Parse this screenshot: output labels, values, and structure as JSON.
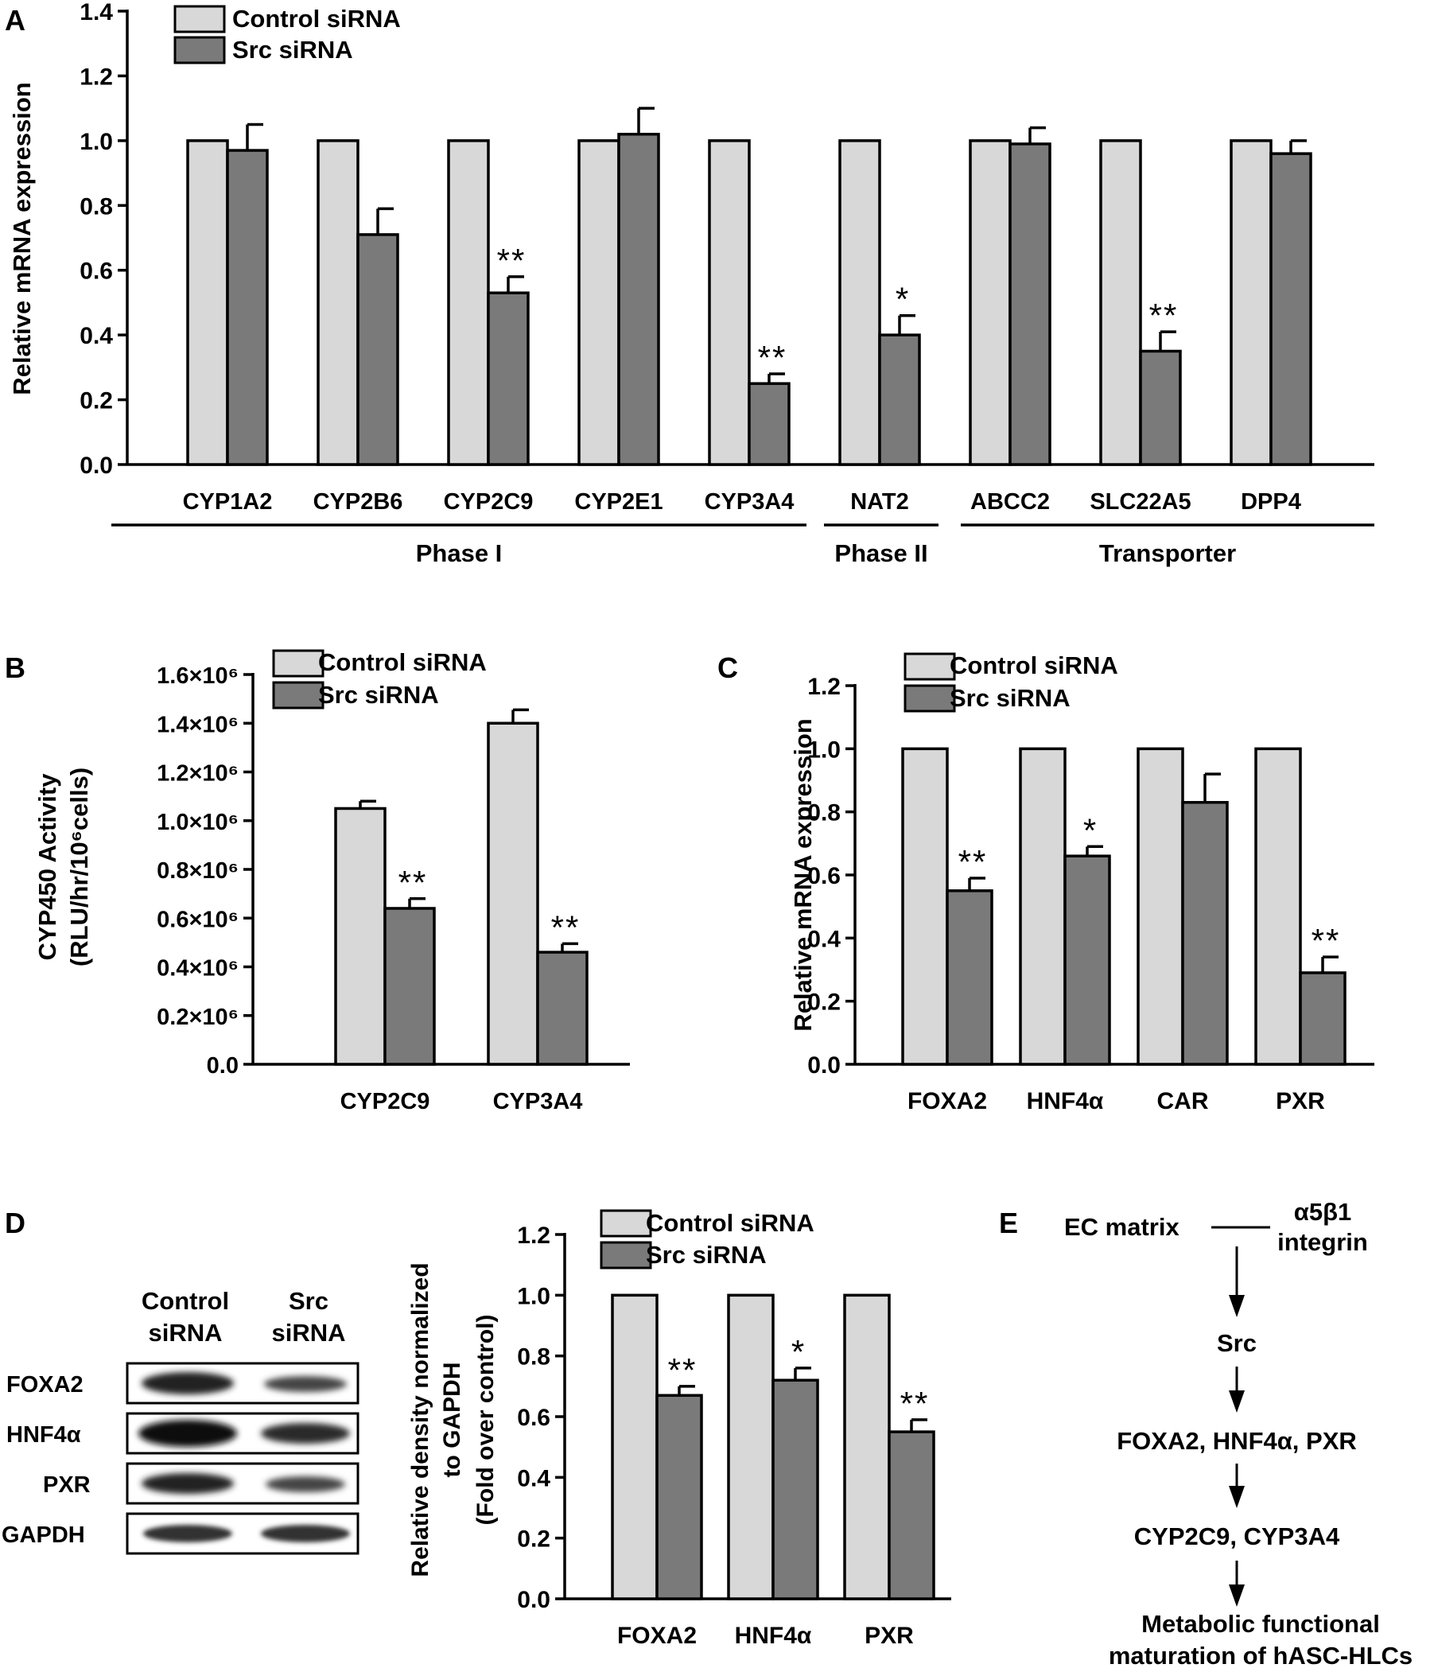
{
  "panels": {
    "A": "A",
    "B": "B",
    "C": "C",
    "D": "D",
    "E": "E"
  },
  "colors": {
    "control": "#d8d8d8",
    "src": "#7a7a7a",
    "stroke": "#000000"
  },
  "legend": {
    "control": "Control siRNA",
    "src": "Src siRNA"
  },
  "blot": {
    "col_labels": [
      "Control\nsiRNA",
      "Src\nsiRNA"
    ],
    "rows": [
      "FOXA2",
      "HNF4α",
      "PXR",
      "GAPDH"
    ]
  },
  "pathway": {
    "ec_matrix": "EC matrix",
    "integrin_line1": "α5β1",
    "integrin_line2": "integrin",
    "steps": [
      "Src",
      "FOXA2, HNF4α, PXR",
      "CYP2C9, CYP3A4",
      "Metabolic functional",
      "maturation of hASC-HLCs"
    ]
  },
  "chart_data": [
    {
      "id": "A",
      "type": "bar",
      "categories": [
        "CYP1A2",
        "CYP2B6",
        "CYP2C9",
        "CYP2E1",
        "CYP3A4",
        "NAT2",
        "ABCC2",
        "SLC22A5",
        "DPP4"
      ],
      "series": [
        {
          "name": "Control siRNA",
          "values": [
            1.0,
            1.0,
            1.0,
            1.0,
            1.0,
            1.0,
            1.0,
            1.0,
            1.0
          ],
          "errors": [
            0,
            0,
            0,
            0,
            0,
            0,
            0,
            0,
            0
          ]
        },
        {
          "name": "Src siRNA",
          "values": [
            0.97,
            0.71,
            0.53,
            1.02,
            0.25,
            0.4,
            0.99,
            0.35,
            0.96
          ],
          "errors": [
            0.08,
            0.08,
            0.05,
            0.08,
            0.03,
            0.06,
            0.05,
            0.06,
            0.04
          ]
        }
      ],
      "significance": [
        "",
        "",
        "**",
        "",
        "**",
        "*",
        "",
        "**",
        ""
      ],
      "ylabel": "Relative mRNA expression",
      "ylim": [
        0,
        1.4
      ],
      "yticks": [
        "0.0",
        "0.2",
        "0.4",
        "0.6",
        "0.8",
        "1.0",
        "1.2",
        "1.4"
      ],
      "groups": [
        {
          "label": "Phase I",
          "from": 0,
          "to": 4
        },
        {
          "label": "Phase II",
          "from": 5,
          "to": 5
        },
        {
          "label": "Transporter",
          "from": 6,
          "to": 8
        }
      ]
    },
    {
      "id": "B",
      "type": "bar",
      "categories": [
        "CYP2C9",
        "CYP3A4"
      ],
      "series": [
        {
          "name": "Control siRNA",
          "values": [
            1050000,
            1400000
          ],
          "errors": [
            30000,
            55000
          ]
        },
        {
          "name": "Src siRNA",
          "values": [
            640000,
            460000
          ],
          "errors": [
            40000,
            35000
          ]
        }
      ],
      "significance": [
        "**",
        "**"
      ],
      "ylabel_line1": "CYP450 Activity",
      "ylabel_line2": "(RLU/hr/10⁶cells)",
      "ylim": [
        0,
        1600000
      ],
      "yticks": [
        "0.0",
        "0.2×10⁶",
        "0.4×10⁶",
        "0.6×10⁶",
        "0.8×10⁶",
        "1.0×10⁶",
        "1.2×10⁶",
        "1.4×10⁶",
        "1.6×10⁶"
      ]
    },
    {
      "id": "C",
      "type": "bar",
      "categories": [
        "FOXA2",
        "HNF4α",
        "CAR",
        "PXR"
      ],
      "series": [
        {
          "name": "Control siRNA",
          "values": [
            1.0,
            1.0,
            1.0,
            1.0
          ],
          "errors": [
            0,
            0,
            0,
            0
          ]
        },
        {
          "name": "Src siRNA",
          "values": [
            0.55,
            0.66,
            0.83,
            0.29
          ],
          "errors": [
            0.04,
            0.03,
            0.09,
            0.05
          ]
        }
      ],
      "significance": [
        "**",
        "*",
        "",
        "**"
      ],
      "ylabel": "Relative mRNA expression",
      "ylim": [
        0,
        1.2
      ],
      "yticks": [
        "0.0",
        "0.2",
        "0.4",
        "0.6",
        "0.8",
        "1.0",
        "1.2"
      ]
    },
    {
      "id": "D",
      "type": "bar",
      "categories": [
        "FOXA2",
        "HNF4α",
        "PXR"
      ],
      "series": [
        {
          "name": "Control siRNA",
          "values": [
            1.0,
            1.0,
            1.0
          ],
          "errors": [
            0,
            0,
            0
          ]
        },
        {
          "name": "Src siRNA",
          "values": [
            0.67,
            0.72,
            0.55
          ],
          "errors": [
            0.03,
            0.04,
            0.04
          ]
        }
      ],
      "significance": [
        "**",
        "*",
        "**"
      ],
      "ylabel_line1": "Relative density normalized",
      "ylabel_line2": "to GAPDH",
      "ylabel_line3": "(Fold over control)",
      "ylim": [
        0,
        1.2
      ],
      "yticks": [
        "0.0",
        "0.2",
        "0.4",
        "0.6",
        "0.8",
        "1.0",
        "1.2"
      ]
    }
  ]
}
